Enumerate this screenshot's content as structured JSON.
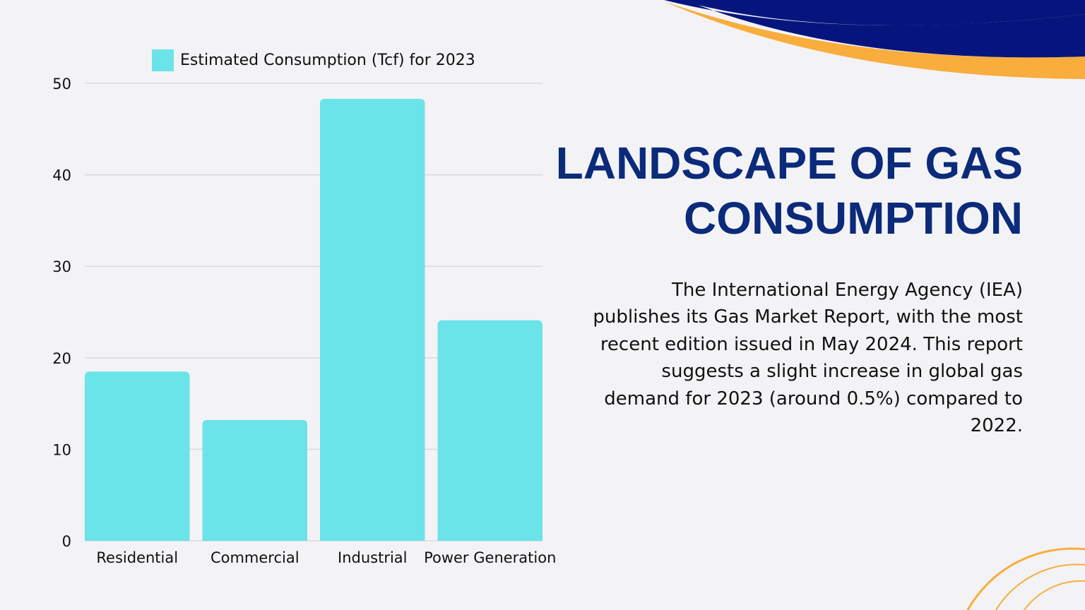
{
  "colors": {
    "background": "#f3f3f6",
    "bar": "#6ae3e9",
    "title": "#0b2a7a",
    "navy": "#06157e",
    "orange": "#f9ad3c",
    "gridline": "#d9d9dd"
  },
  "chart_data": {
    "type": "bar",
    "categories": [
      "Residential",
      "Commercial",
      "Industrial",
      "Power Generation"
    ],
    "series": [
      {
        "name": "Estimated Consumption (Tcf) for 2023",
        "values": [
          18.5,
          13.2,
          48.3,
          24.1
        ]
      }
    ],
    "ylim": [
      0,
      50
    ],
    "yticks": [
      "0",
      "10",
      "20",
      "30",
      "40",
      "50"
    ],
    "grid": true,
    "legend_position": "top",
    "title": "",
    "xlabel": "",
    "ylabel": ""
  },
  "slide": {
    "title_line1": "LANDSCAPE OF GAS",
    "title_line2": "CONSUMPTION",
    "body": "The International Energy Agency (IEA) publishes its Gas Market Report, with the most recent edition issued in May 2024. This report suggests a slight increase in global gas demand for 2023 (around 0.5%) compared to 2022."
  }
}
